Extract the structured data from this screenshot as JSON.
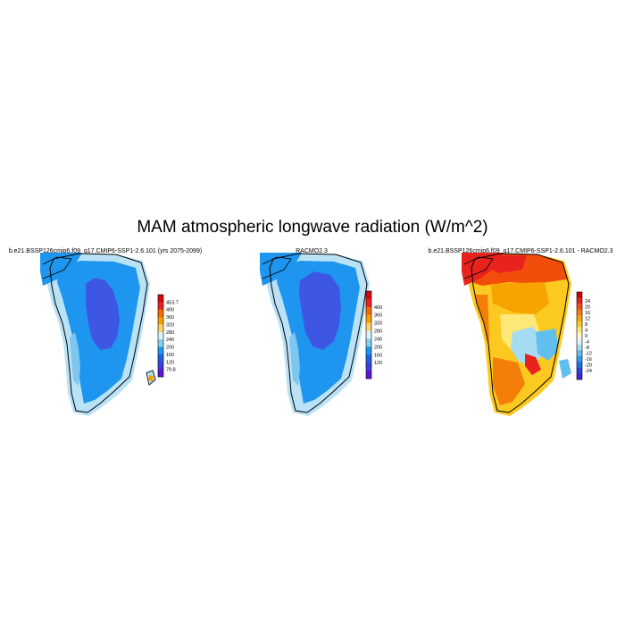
{
  "figure": {
    "title": "MAM atmospheric longwave radiation (W/m^2)"
  },
  "panels": [
    {
      "title": "b.e21.BSSP126cmip6.f09_g17.CMIP6-SSP1-2.6.101 (yrs 2075-2099)",
      "colorbar": {
        "labels": [
          "453.7",
          "400",
          "360",
          "320",
          "280",
          "240",
          "200",
          "160",
          "120",
          "79.8"
        ],
        "colors": [
          "#d40b0b",
          "#ee2020",
          "#f46d00",
          "#f7a000",
          "#fbd36a",
          "#ddf1fb",
          "#88cef0",
          "#1e96f0",
          "#1f5fe6",
          "#3d3ee0",
          "#5e16d6"
        ]
      }
    },
    {
      "title": "RACMO2.3",
      "colorbar": {
        "labels": [
          "400",
          "360",
          "320",
          "280",
          "240",
          "200",
          "160",
          "120"
        ],
        "colors": [
          "#d40b0b",
          "#ee2020",
          "#f46d00",
          "#f7a000",
          "#fbd36a",
          "#ddf1fb",
          "#88cef0",
          "#1e96f0",
          "#1f5fe6",
          "#3d3ee0",
          "#5e16d6"
        ]
      }
    },
    {
      "title": "b.e21.BSSP126cmip6.f09_g17.CMIP6-SSP1-2.6.101 - RACMO2.3",
      "colorbar": {
        "labels": [
          "24",
          "20",
          "16",
          "12",
          "8",
          "4",
          "0",
          "-4",
          "-8",
          "-12",
          "-16",
          "-20",
          "-24"
        ],
        "colors": [
          "#c9050a",
          "#e8231d",
          "#f24d0b",
          "#f57d0a",
          "#f7a300",
          "#fbc91f",
          "#fde776",
          "#fff7c4",
          "#dcf1f8",
          "#a6dcf2",
          "#61bff0",
          "#2b9df0",
          "#1f6fe8",
          "#2c43e0",
          "#4b1fd8"
        ]
      }
    }
  ]
}
